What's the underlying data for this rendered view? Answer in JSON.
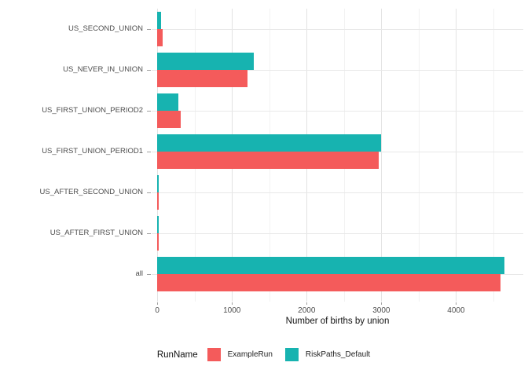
{
  "chart_data": {
    "type": "bar",
    "orientation": "horizontal",
    "title": "",
    "xlabel": "Number of births by union",
    "ylabel": "",
    "categories": [
      "US_SECOND_UNION",
      "US_NEVER_IN_UNION",
      "US_FIRST_UNION_PERIOD2",
      "US_FIRST_UNION_PERIOD1",
      "US_AFTER_SECOND_UNION",
      "US_AFTER_FIRST_UNION",
      "all"
    ],
    "series": [
      {
        "name": "ExampleRun",
        "color": "#F45B5B",
        "values": [
          70,
          1210,
          315,
          2960,
          15,
          15,
          4600
        ]
      },
      {
        "name": "RiskPaths_Default",
        "color": "#17B3B0",
        "values": [
          50,
          1290,
          285,
          3000,
          15,
          15,
          4650
        ]
      }
    ],
    "x_ticks": [
      0,
      1000,
      2000,
      3000,
      4000
    ],
    "x_minor_ticks": [
      500,
      1500,
      2500,
      3500,
      4500
    ],
    "xlim": [
      -75,
      4900
    ],
    "grid": true,
    "legend_title": "RunName",
    "legend_position": "bottom"
  }
}
